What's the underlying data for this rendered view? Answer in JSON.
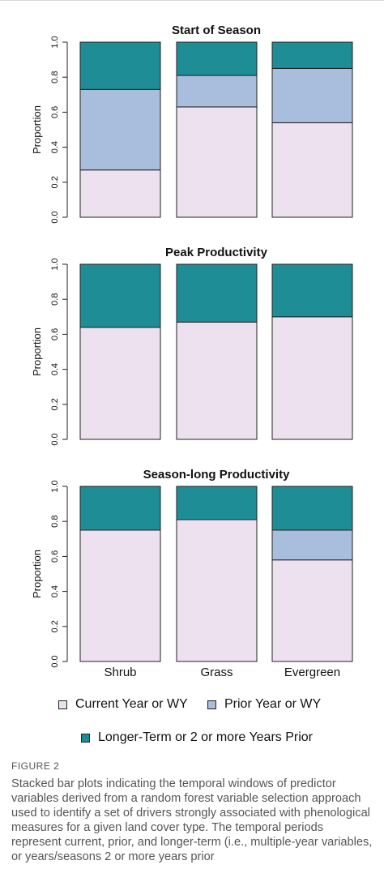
{
  "figure": {
    "label": "FIGURE 2",
    "caption": "Stacked bar plots indicating the temporal windows of predictor variables derived from a random forest variable selection approach used to identify a set of drivers strongly associated with phenological measures for a given land cover type. The temporal periods represent current, prior, and longer-term (i.e., multiple-year variables, or years/seasons 2 or more years prior"
  },
  "legend": {
    "items": [
      {
        "label": "Current Year or WY",
        "color": "#ede1ef"
      },
      {
        "label": "Prior Year or WY",
        "color": "#a9bddc"
      },
      {
        "label": "Longer-Term or 2 or more Years Prior",
        "color": "#1f8d96"
      }
    ]
  },
  "chart_data": [
    {
      "type": "bar",
      "stacked": true,
      "title": "Start of Season",
      "ylabel": "Proportion",
      "ylim": [
        0,
        1
      ],
      "yticks": [
        "0.0",
        "0.2",
        "0.4",
        "0.6",
        "0.8",
        "1.0"
      ],
      "categories": [
        "Shrub",
        "Grass",
        "Evergreen"
      ],
      "series": [
        {
          "name": "Current Year or WY",
          "values": [
            0.27,
            0.63,
            0.54
          ]
        },
        {
          "name": "Prior Year or WY",
          "values": [
            0.46,
            0.18,
            0.31
          ]
        },
        {
          "name": "Longer-Term or 2 or more Years Prior",
          "values": [
            0.27,
            0.19,
            0.15
          ]
        }
      ]
    },
    {
      "type": "bar",
      "stacked": true,
      "title": "Peak Productivity",
      "ylabel": "Proportion",
      "ylim": [
        0,
        1
      ],
      "yticks": [
        "0.0",
        "0.2",
        "0.4",
        "0.6",
        "0.8",
        "1.0"
      ],
      "categories": [
        "Shrub",
        "Grass",
        "Evergreen"
      ],
      "series": [
        {
          "name": "Current Year or WY",
          "values": [
            0.64,
            0.67,
            0.7
          ]
        },
        {
          "name": "Prior Year or WY",
          "values": [
            0,
            0,
            0
          ]
        },
        {
          "name": "Longer-Term or 2 or more Years Prior",
          "values": [
            0.36,
            0.33,
            0.3
          ]
        }
      ]
    },
    {
      "type": "bar",
      "stacked": true,
      "title": "Season-long Productivity",
      "ylabel": "Proportion",
      "ylim": [
        0,
        1
      ],
      "yticks": [
        "0.0",
        "0.2",
        "0.4",
        "0.6",
        "0.8",
        "1.0"
      ],
      "categories": [
        "Shrub",
        "Grass",
        "Evergreen"
      ],
      "show_category_labels": true,
      "series": [
        {
          "name": "Current Year or WY",
          "values": [
            0.75,
            0.81,
            0.58
          ]
        },
        {
          "name": "Prior Year or WY",
          "values": [
            0,
            0,
            0.17
          ]
        },
        {
          "name": "Longer-Term or 2 or more Years Prior",
          "values": [
            0.25,
            0.19,
            0.25
          ]
        }
      ]
    }
  ]
}
